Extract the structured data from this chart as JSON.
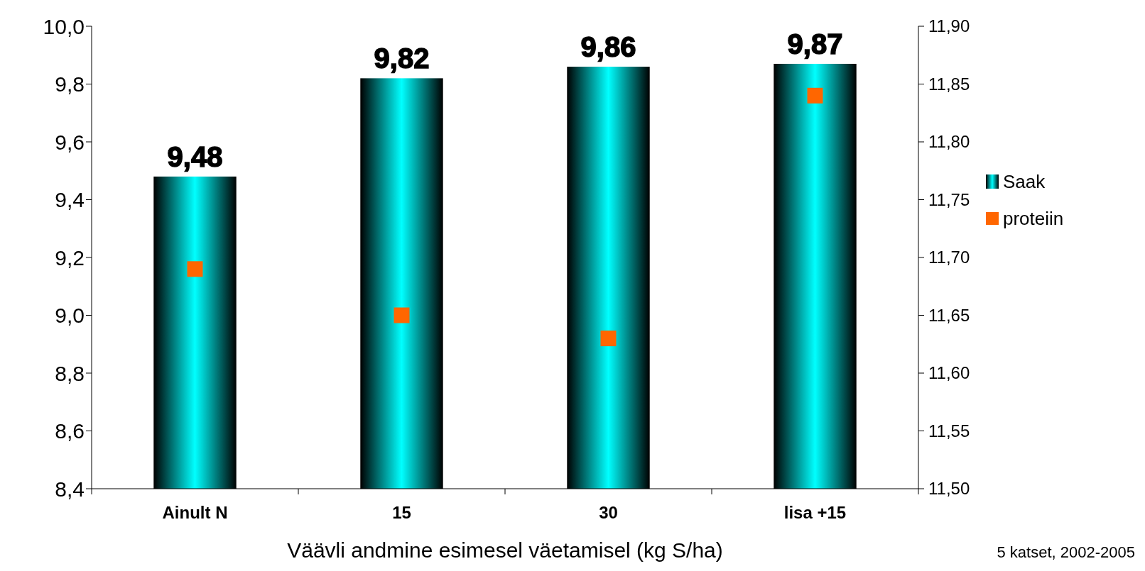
{
  "chart_data": {
    "type": "bar",
    "categories": [
      "Ainult N",
      "15",
      "30",
      "lisa +15"
    ],
    "xlabel": "Väävli andmine esimesel väetamisel (kg S/ha)",
    "annotations": [
      "5 katset, 2002-2005"
    ],
    "series": [
      {
        "name": "Saak",
        "color": "#00ffff",
        "values": [
          9.48,
          9.82,
          9.86,
          9.87
        ],
        "value_labels": [
          "9,48",
          "9,82",
          "9,86",
          "9,87"
        ]
      },
      {
        "name": "proteiin",
        "type": "scatter",
        "axis": "y2",
        "color": "#ff6600",
        "values": [
          11.69,
          11.65,
          11.63,
          11.84
        ]
      }
    ],
    "ylim": [
      8.4,
      10.0
    ],
    "yticks": [
      {
        "value": 8.4,
        "label": "8,4"
      },
      {
        "value": 8.6,
        "label": "8,6"
      },
      {
        "value": 8.8,
        "label": "8,8"
      },
      {
        "value": 9.0,
        "label": "9,0"
      },
      {
        "value": 9.2,
        "label": "9,2"
      },
      {
        "value": 9.4,
        "label": "9,4"
      },
      {
        "value": 9.6,
        "label": "9,6"
      },
      {
        "value": 9.8,
        "label": "9,8"
      },
      {
        "value": 10.0,
        "label": "10,0"
      }
    ],
    "y2lim": [
      11.5,
      11.9
    ],
    "y2ticks": [
      {
        "value": 11.5,
        "label": "11,50"
      },
      {
        "value": 11.55,
        "label": "11,55"
      },
      {
        "value": 11.6,
        "label": "11,60"
      },
      {
        "value": 11.65,
        "label": "11,65"
      },
      {
        "value": 11.7,
        "label": "11,70"
      },
      {
        "value": 11.75,
        "label": "11,75"
      },
      {
        "value": 11.8,
        "label": "11,80"
      },
      {
        "value": 11.85,
        "label": "11,85"
      },
      {
        "value": 11.9,
        "label": "11,90"
      }
    ],
    "marker": "square",
    "legend": "right",
    "grid": false
  }
}
